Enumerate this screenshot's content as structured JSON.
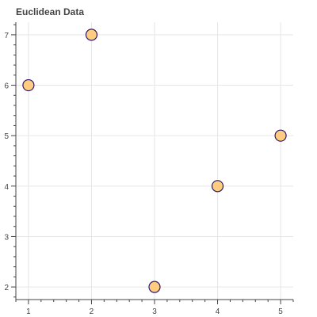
{
  "chart_data": {
    "type": "scatter",
    "title": "Euclidean Data",
    "xlabel": "",
    "ylabel": "",
    "x": [
      1,
      2,
      3,
      4,
      5
    ],
    "y": [
      6,
      7,
      2,
      4,
      5
    ],
    "xlim": [
      0.8,
      5.2
    ],
    "ylim": [
      1.75,
      7.25
    ],
    "xticks": [
      1,
      2,
      3,
      4,
      5
    ],
    "yticks": [
      2,
      3,
      4,
      5,
      6,
      7
    ],
    "grid": true,
    "marker_fill": "#ffcc80",
    "marker_stroke": "#2b1a6b",
    "grid_color": "#e6e6e6",
    "axis_color": "#444444"
  }
}
